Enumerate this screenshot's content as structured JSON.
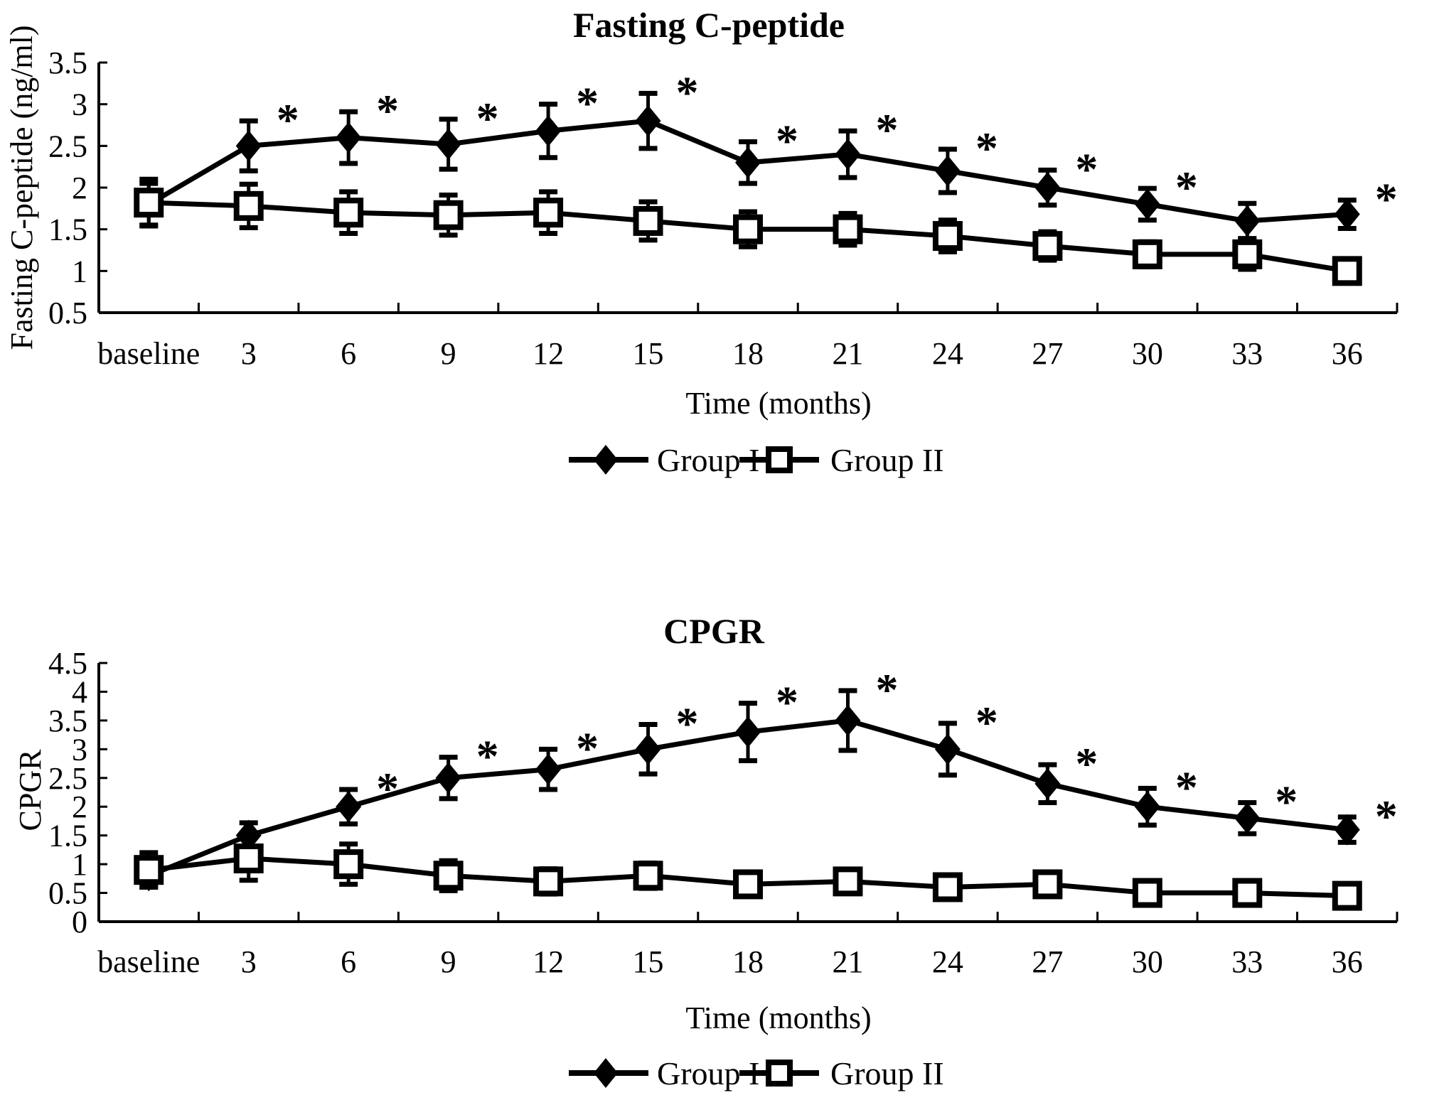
{
  "figure": {
    "background": "#ffffff",
    "ink": "#000000",
    "significance_marker": "*"
  },
  "chart_data": [
    {
      "type": "line",
      "title": "Fasting C-peptide",
      "ylabel": "Fasting C-peptide (ng/ml)",
      "xlabel": "Time (months)",
      "categories": [
        "baseline",
        "3",
        "6",
        "9",
        "12",
        "15",
        "18",
        "21",
        "24",
        "27",
        "30",
        "33",
        "36"
      ],
      "ylim": [
        0.5,
        3.5
      ],
      "yticks": [
        "0.5",
        "1",
        "1.5",
        "2",
        "2.5",
        "3",
        "3.5"
      ],
      "grid": false,
      "legend_position": "bottom-center",
      "series": [
        {
          "name": "Group I",
          "marker": "filled-diamond",
          "values": [
            1.8,
            2.5,
            2.6,
            2.52,
            2.68,
            2.8,
            2.3,
            2.4,
            2.2,
            2.0,
            1.8,
            1.6,
            1.68
          ],
          "errors": [
            0.25,
            0.3,
            0.31,
            0.3,
            0.32,
            0.33,
            0.25,
            0.28,
            0.26,
            0.21,
            0.19,
            0.21,
            0.17
          ]
        },
        {
          "name": "Group II",
          "marker": "open-square",
          "values": [
            1.82,
            1.78,
            1.7,
            1.67,
            1.7,
            1.6,
            1.5,
            1.5,
            1.42,
            1.3,
            1.2,
            1.2,
            1.0
          ],
          "errors": [
            0.28,
            0.26,
            0.25,
            0.24,
            0.25,
            0.23,
            0.21,
            0.19,
            0.19,
            0.17,
            0.15,
            0.18,
            0.12
          ]
        }
      ],
      "significant_category_indices": [
        1,
        2,
        3,
        4,
        5,
        6,
        7,
        8,
        9,
        10,
        12
      ]
    },
    {
      "type": "line",
      "title": "CPGR",
      "ylabel": "CPGR",
      "xlabel": "Time (months)",
      "categories": [
        "baseline",
        "3",
        "6",
        "9",
        "12",
        "15",
        "18",
        "21",
        "24",
        "27",
        "30",
        "33",
        "36"
      ],
      "ylim": [
        0,
        4.5
      ],
      "yticks": [
        "0",
        "0.5",
        "1",
        "1.5",
        "2",
        "2.5",
        "3",
        "3.5",
        "4",
        "4.5"
      ],
      "grid": false,
      "legend_position": "bottom-center",
      "series": [
        {
          "name": "Group I",
          "marker": "filled-diamond",
          "values": [
            0.8,
            1.5,
            2.0,
            2.5,
            2.65,
            3.0,
            3.3,
            3.5,
            3.0,
            2.4,
            2.0,
            1.8,
            1.6
          ],
          "errors": [
            0.2,
            0.22,
            0.3,
            0.36,
            0.35,
            0.43,
            0.5,
            0.52,
            0.45,
            0.33,
            0.32,
            0.27,
            0.22
          ]
        },
        {
          "name": "Group II",
          "marker": "open-square",
          "values": [
            0.9,
            1.1,
            1.0,
            0.8,
            0.7,
            0.8,
            0.65,
            0.7,
            0.6,
            0.65,
            0.5,
            0.5,
            0.45
          ],
          "errors": [
            0.3,
            0.38,
            0.35,
            0.26,
            0.22,
            0.22,
            0.2,
            0.2,
            0.11,
            0.13,
            0.06,
            0.06,
            0.05
          ]
        }
      ],
      "significant_category_indices": [
        2,
        3,
        4,
        5,
        6,
        7,
        8,
        9,
        10,
        11,
        12
      ]
    }
  ]
}
